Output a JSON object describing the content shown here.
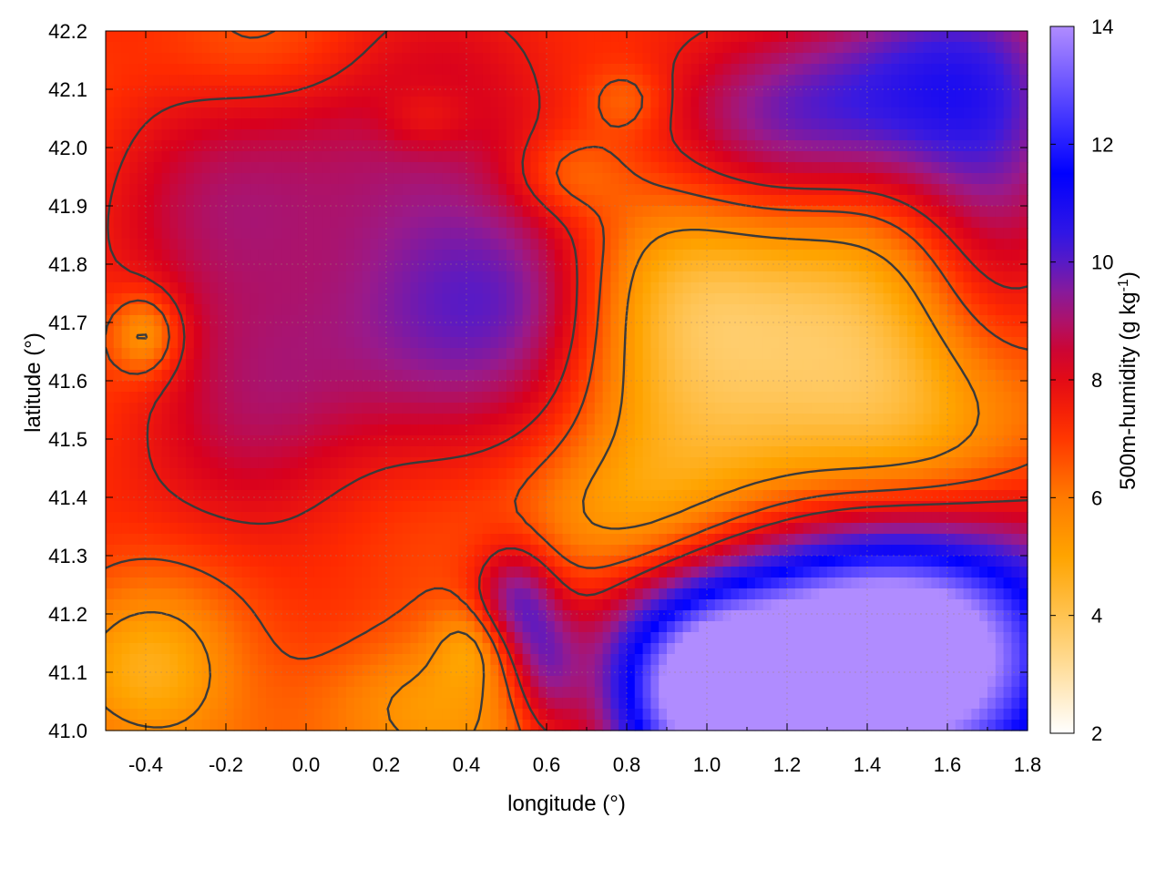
{
  "chart_data": {
    "type": "heatmap",
    "title": "",
    "xlabel": "longitude (°)",
    "ylabel": "latitude (°)",
    "colorbar_label_main": "500m-humidity (g kg",
    "colorbar_label_sup": "-1",
    "colorbar_label_end": ")",
    "xlim": [
      -0.5,
      1.8
    ],
    "ylim": [
      41.0,
      42.2
    ],
    "x_ticks": [
      "-0.4",
      "-0.2",
      "0.0",
      "0.2",
      "0.4",
      "0.6",
      "0.8",
      "1.0",
      "1.2",
      "1.4",
      "1.6",
      "1.8"
    ],
    "x_tick_values": [
      -0.4,
      -0.2,
      0.0,
      0.2,
      0.4,
      0.6,
      0.8,
      1.0,
      1.2,
      1.4,
      1.6,
      1.8
    ],
    "y_ticks": [
      "41.0",
      "41.1",
      "41.2",
      "41.3",
      "41.4",
      "41.5",
      "41.6",
      "41.7",
      "41.8",
      "41.9",
      "42.0",
      "42.1",
      "42.2"
    ],
    "y_tick_values": [
      41.0,
      41.1,
      41.2,
      41.3,
      41.4,
      41.5,
      41.6,
      41.7,
      41.8,
      41.9,
      42.0,
      42.1,
      42.2
    ],
    "colorbar_ticks": [
      "2",
      "4",
      "6",
      "8",
      "10",
      "12",
      "14"
    ],
    "colorbar_tick_values": [
      2,
      4,
      6,
      8,
      10,
      12,
      14
    ],
    "color_range": [
      2,
      14
    ],
    "grid": true,
    "colormap": [
      "#ffffff",
      "#ffd27a",
      "#ffa400",
      "#ff7a00",
      "#ff2a00",
      "#d8001e",
      "#9a1a8a",
      "#3a1ae0",
      "#0000ff",
      "#b08cff"
    ],
    "color_stops": [
      2,
      3.5,
      5,
      6,
      7.2,
      8.3,
      9.3,
      10.3,
      11.5,
      14
    ],
    "contour_color": "#3a3a3a",
    "features": [
      {
        "lon": 0.15,
        "lat": 41.75,
        "amp": 1.7,
        "sx": 0.35,
        "sy": 0.25
      },
      {
        "lon": -0.25,
        "lat": 41.55,
        "amp": 1.0,
        "sx": 0.25,
        "sy": 0.25
      },
      {
        "lon": 0.0,
        "lat": 41.95,
        "amp": 1.0,
        "sx": 0.3,
        "sy": 0.15
      },
      {
        "lon": 0.35,
        "lat": 41.65,
        "amp": 1.2,
        "sx": 0.2,
        "sy": 0.2
      },
      {
        "lon": 0.6,
        "lat": 41.72,
        "amp": 1.2,
        "sx": 0.15,
        "sy": 0.15
      },
      {
        "lon": 0.55,
        "lat": 42.1,
        "amp": 0.8,
        "sx": 0.2,
        "sy": 0.15
      },
      {
        "lon": 1.2,
        "lat": 42.05,
        "amp": 2.0,
        "sx": 0.25,
        "sy": 0.12
      },
      {
        "lon": 1.6,
        "lat": 42.1,
        "amp": 3.2,
        "sx": 0.3,
        "sy": 0.15
      },
      {
        "lon": 1.7,
        "lat": 41.85,
        "amp": 1.5,
        "sx": 0.15,
        "sy": 0.2
      },
      {
        "lon": 1.25,
        "lat": 41.15,
        "amp": 6.5,
        "sx": 0.35,
        "sy": 0.15
      },
      {
        "lon": 1.6,
        "lat": 41.1,
        "amp": 6.0,
        "sx": 0.3,
        "sy": 0.2
      },
      {
        "lon": 1.0,
        "lat": 41.05,
        "amp": 5.5,
        "sx": 0.15,
        "sy": 0.12
      },
      {
        "lon": 0.52,
        "lat": 41.22,
        "amp": 2.8,
        "sx": 0.07,
        "sy": 0.07
      },
      {
        "lon": 0.6,
        "lat": 41.1,
        "amp": 2.0,
        "sx": 0.06,
        "sy": 0.08
      },
      {
        "lon": 1.05,
        "lat": 41.55,
        "amp": -1.8,
        "sx": 0.25,
        "sy": 0.2
      },
      {
        "lon": 1.45,
        "lat": 41.5,
        "amp": -2.0,
        "sx": 0.25,
        "sy": 0.18
      },
      {
        "lon": 0.75,
        "lat": 41.35,
        "amp": -2.0,
        "sx": 0.2,
        "sy": 0.1
      },
      {
        "lon": -0.4,
        "lat": 41.68,
        "amp": -2.3,
        "sx": 0.06,
        "sy": 0.05
      },
      {
        "lon": -0.4,
        "lat": 41.1,
        "amp": -1.8,
        "sx": 0.15,
        "sy": 0.1
      },
      {
        "lon": 0.25,
        "lat": 41.05,
        "amp": -1.2,
        "sx": 0.2,
        "sy": 0.08
      },
      {
        "lon": 0.42,
        "lat": 41.15,
        "amp": -1.5,
        "sx": 0.07,
        "sy": 0.05
      },
      {
        "lon": 0.65,
        "lat": 41.95,
        "amp": -1.2,
        "sx": 0.1,
        "sy": 0.05
      },
      {
        "lon": 0.8,
        "lat": 42.08,
        "amp": -1.0,
        "sx": 0.07,
        "sy": 0.04
      },
      {
        "lon": 0.3,
        "lat": 42.05,
        "amp": -0.9,
        "sx": 0.08,
        "sy": 0.04
      },
      {
        "lon": 0.95,
        "lat": 41.8,
        "amp": -1.3,
        "sx": 0.2,
        "sy": 0.12
      },
      {
        "lon": 1.35,
        "lat": 41.72,
        "amp": -1.0,
        "sx": 0.2,
        "sy": 0.15
      },
      {
        "lon": -0.1,
        "lat": 42.15,
        "amp": -0.4,
        "sx": 0.2,
        "sy": 0.06
      }
    ],
    "baseline": 6.5,
    "lon_gradient": -0.2,
    "lat_gradient": 0.3,
    "contour_levels": [
      5.5,
      6.7,
      7.7
    ]
  }
}
